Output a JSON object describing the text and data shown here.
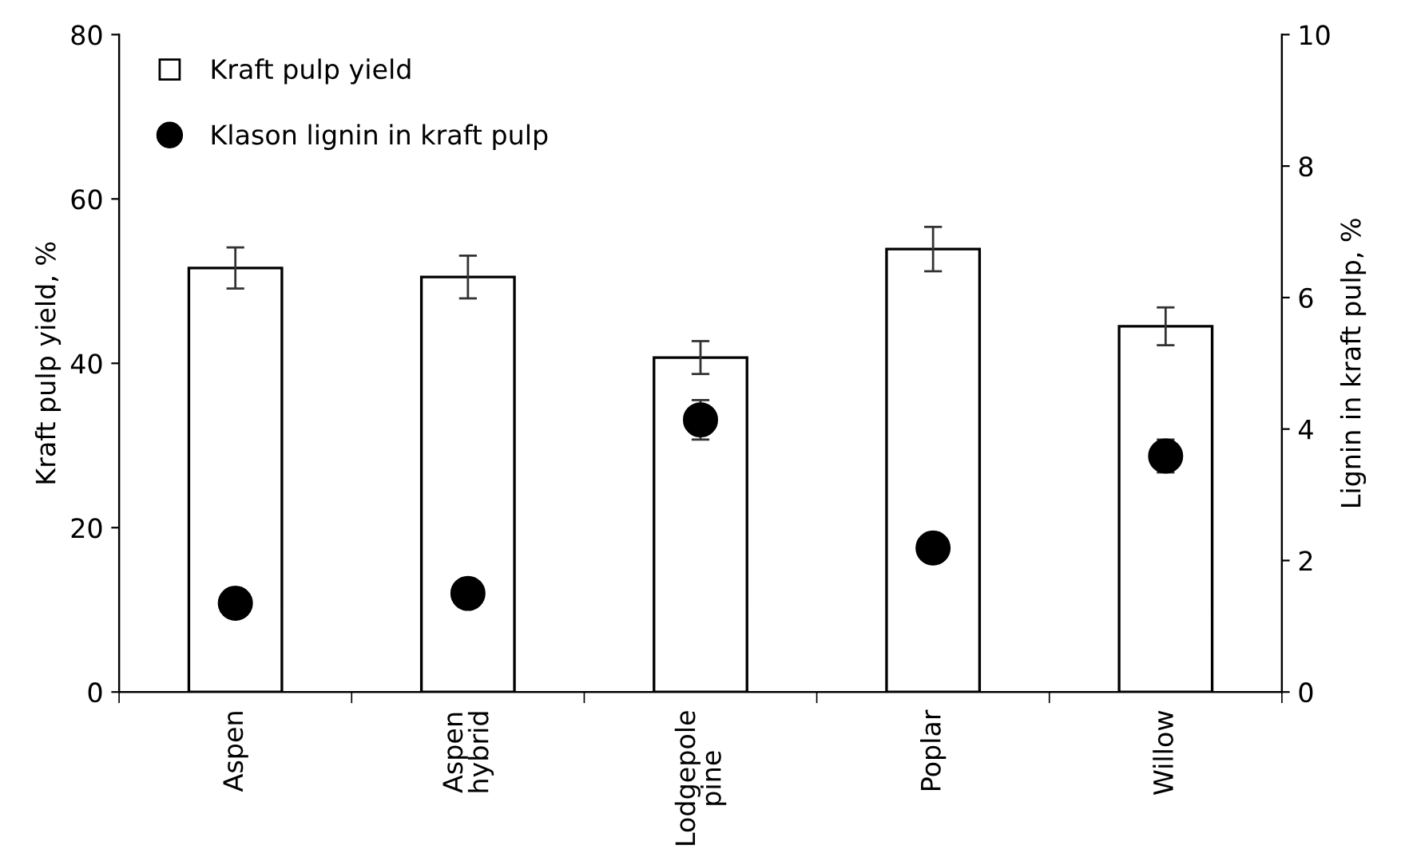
{
  "chart_data": {
    "type": "bar",
    "categories": [
      "Aspen",
      "Aspen\nhybrid",
      "Lodgepole\npine",
      "Poplar",
      "Willow"
    ],
    "ylabel": "Kraft pulp yield, %",
    "y2label": "Lignin in kraft pulp, %",
    "ylim": [
      0,
      80
    ],
    "yticks": [
      0,
      20,
      40,
      60,
      80
    ],
    "y2lim": [
      0,
      10
    ],
    "y2ticks": [
      0,
      2,
      4,
      6,
      8,
      10
    ],
    "series": [
      {
        "name": "Kraft pulp yield",
        "color": "#ffffff",
        "values": [
          51.6,
          50.5,
          40.7,
          53.9,
          44.5
        ],
        "errors": [
          2.5,
          2.6,
          2.0,
          2.7,
          2.3
        ]
      },
      {
        "name": "Klason lignin in kraft pulp",
        "type": "scatter",
        "axis": "y2",
        "color": "#000000",
        "marker": "circle",
        "values": [
          1.35,
          1.5,
          4.14,
          2.19,
          3.59
        ],
        "errors": [
          null,
          null,
          0.3,
          null,
          0.25
        ]
      }
    ],
    "grid": false,
    "legend": "top left"
  }
}
